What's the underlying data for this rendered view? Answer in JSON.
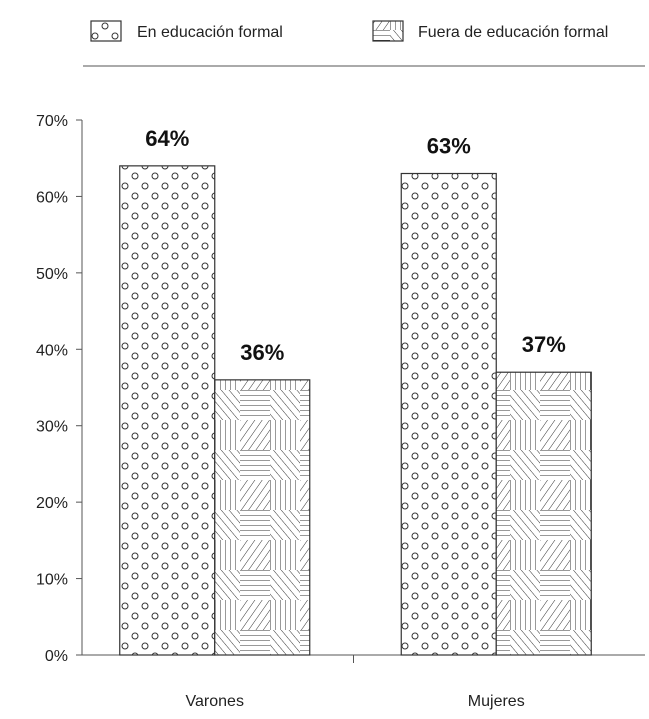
{
  "chart_data": {
    "type": "bar",
    "categories": [
      "Varones",
      "Mujeres"
    ],
    "series": [
      {
        "name": "En educación formal",
        "values": [
          64,
          63
        ],
        "pattern": "dots"
      },
      {
        "name": "Fuera de educación formal",
        "values": [
          36,
          37
        ],
        "pattern": "hatch"
      }
    ],
    "data_labels": [
      [
        "64%",
        "63%"
      ],
      [
        "36%",
        "37%"
      ]
    ],
    "y_ticks": [
      "0%",
      "10%",
      "20%",
      "30%",
      "40%",
      "50%",
      "60%",
      "70%"
    ],
    "ylim": [
      0,
      70
    ],
    "grid": false,
    "legend_position": "top",
    "title": "",
    "xlabel": "",
    "ylabel": "",
    "colors": {
      "fill": "#ffffff",
      "stroke": "#333333",
      "axis": "#555555"
    }
  }
}
